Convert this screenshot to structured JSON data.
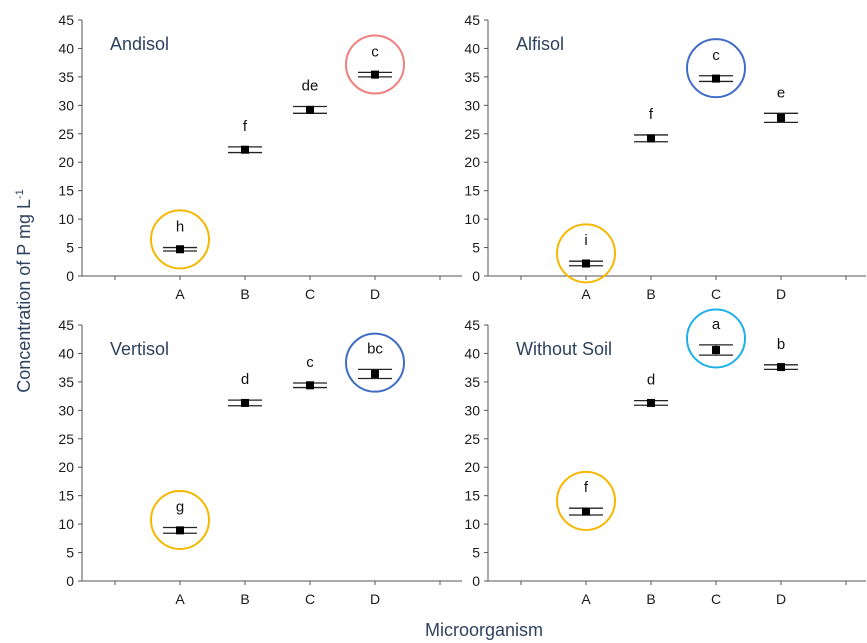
{
  "chart_data": {
    "type": "scatter",
    "xlabel": "Microorganism",
    "ylabel": "Concentration of P mg L",
    "ylabel_superscript": "-1",
    "categories": [
      "A",
      "B",
      "C",
      "D"
    ],
    "ylim": [
      0,
      45
    ],
    "yticks": [
      0,
      5,
      10,
      15,
      20,
      25,
      30,
      35,
      40,
      45
    ],
    "panels": [
      {
        "title": "Andisol",
        "values": [
          4.7,
          22.2,
          29.2,
          35.4
        ],
        "err": [
          0.3,
          0.5,
          0.6,
          0.4
        ],
        "letters": [
          "h",
          "f",
          "de",
          "c"
        ],
        "circles": [
          {
            "category": "A",
            "color": "#F5B800"
          },
          {
            "category": "D",
            "color": "#F08080"
          }
        ]
      },
      {
        "title": "Alfisol",
        "values": [
          2.2,
          24.2,
          34.7,
          27.8
        ],
        "err": [
          0.4,
          0.6,
          0.5,
          0.8
        ],
        "letters": [
          "i",
          "f",
          "c",
          "e"
        ],
        "circles": [
          {
            "category": "A",
            "color": "#F5B800"
          },
          {
            "category": "C",
            "color": "#3F6CC6"
          }
        ]
      },
      {
        "title": "Vertisol",
        "values": [
          8.9,
          31.3,
          34.4,
          36.4
        ],
        "err": [
          0.5,
          0.5,
          0.4,
          0.8
        ],
        "letters": [
          "g",
          "d",
          "c",
          "bc"
        ],
        "circles": [
          {
            "category": "A",
            "color": "#F5B800"
          },
          {
            "category": "D",
            "color": "#3F6CC6"
          }
        ]
      },
      {
        "title": "Without Soil",
        "values": [
          12.2,
          31.3,
          40.6,
          37.6
        ],
        "err": [
          0.6,
          0.4,
          0.9,
          0.4
        ],
        "letters": [
          "f",
          "d",
          "a",
          "b"
        ],
        "circles": [
          {
            "category": "A",
            "color": "#F5B800"
          },
          {
            "category": "C",
            "color": "#1FB0E8"
          }
        ]
      }
    ],
    "grid": false,
    "legend": "none"
  }
}
